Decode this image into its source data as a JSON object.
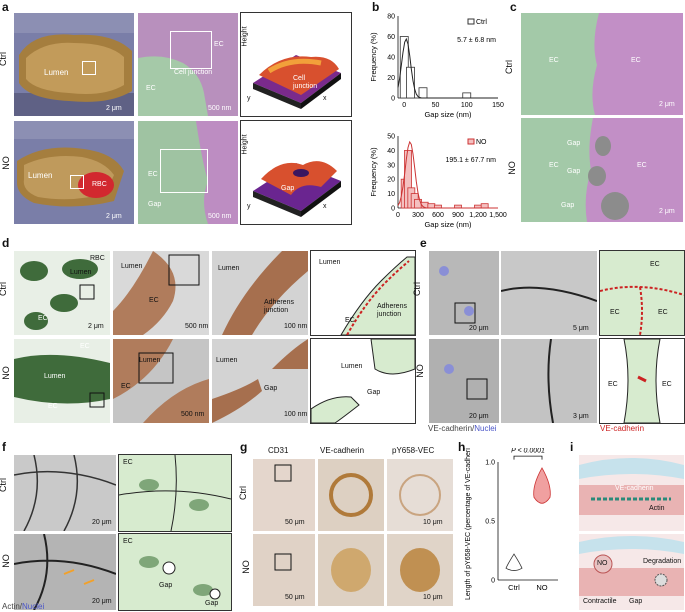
{
  "panels": {
    "a": "a",
    "b": "b",
    "c": "c",
    "d": "d",
    "e": "e",
    "f": "f",
    "g": "g",
    "h": "h",
    "i": "i"
  },
  "rows": {
    "ctrl": "Ctrl",
    "no": "NO"
  },
  "a": {
    "lumen": "Lumen",
    "rbc": "RBC",
    "ec": "EC",
    "cell_junction": "Cell junction",
    "gap": "Gap",
    "height": "Height",
    "x": "x",
    "y": "y",
    "scale_2um": "2 μm",
    "scale_500nm": "500 nm"
  },
  "b": {
    "ylabel": "Frequency (%)",
    "xlabel": "Gap size (nm)",
    "legend_ctrl": "Ctrl",
    "legend_no": "NO",
    "stat_ctrl": "5.7 ± 6.8 nm",
    "stat_no": "195.1 ± 67.7 nm",
    "ctrl_yticks": [
      "0",
      "20",
      "40",
      "60",
      "80"
    ],
    "ctrl_xticks": [
      "0",
      "50",
      "100",
      "150"
    ],
    "no_yticks": [
      "0",
      "10",
      "20",
      "30",
      "40",
      "50"
    ],
    "no_xticks": [
      "0",
      "300",
      "600",
      "900",
      "1,200",
      "1,500"
    ]
  },
  "chart_data": [
    {
      "type": "bar",
      "title": "Ctrl",
      "xlabel": "Gap size (nm)",
      "ylabel": "Frequency (%)",
      "xlim": [
        -10,
        150
      ],
      "ylim": [
        0,
        80
      ],
      "x": [
        0,
        10,
        30,
        100
      ],
      "values": [
        60,
        30,
        10,
        5
      ]
    },
    {
      "type": "bar",
      "title": "NO",
      "xlabel": "Gap size (nm)",
      "ylabel": "Frequency (%)",
      "xlim": [
        0,
        1500
      ],
      "ylim": [
        0,
        50
      ],
      "x": [
        100,
        150,
        200,
        250,
        300,
        400,
        500,
        600,
        900,
        1200,
        1300
      ],
      "values": [
        20,
        40,
        14,
        10,
        6,
        4,
        3,
        2,
        2,
        2,
        3
      ]
    }
  ],
  "c": {
    "ec": "EC",
    "gap": "Gap",
    "scale": "2 μm"
  },
  "d": {
    "lumen": "Lumen",
    "ec": "EC",
    "rbc": "RBC",
    "adherens": "Adherens junction",
    "gap": "Gap",
    "scale_2um": "2 μm",
    "scale_500nm": "500 nm",
    "scale_100nm": "100 nm"
  },
  "e": {
    "ec": "EC",
    "legend_ve": "VE-cadherin",
    "legend_nuclei": "Nuclei",
    "legend_ve_red": "VE-cadherin",
    "scale_20um": "20 μm",
    "scale_5um": "5 μm",
    "scale_3um": "3 μm"
  },
  "f": {
    "ec": "EC",
    "gap": "Gap",
    "legend_actin": "Actin",
    "legend_nuclei": "Nuclei",
    "scale": "20 μm"
  },
  "g": {
    "col1": "CD31",
    "col2": "VE-cadherin",
    "col3": "pY658-VEC",
    "scale_50um": "50 μm",
    "scale_10um": "10 μm"
  },
  "h": {
    "ylabel": "Length of pY658-VEC (percentage of VE-cadherin)",
    "pval": "P < 0.0001",
    "xticks": [
      "Ctrl",
      "NO"
    ],
    "yticks": [
      "0",
      "0.5",
      "1.0"
    ]
  },
  "i": {
    "ve": "VE-cadherin",
    "actin": "Actin",
    "no": "NO",
    "degradation": "Degradation",
    "contractile": "Contractile",
    "gap": "Gap"
  }
}
